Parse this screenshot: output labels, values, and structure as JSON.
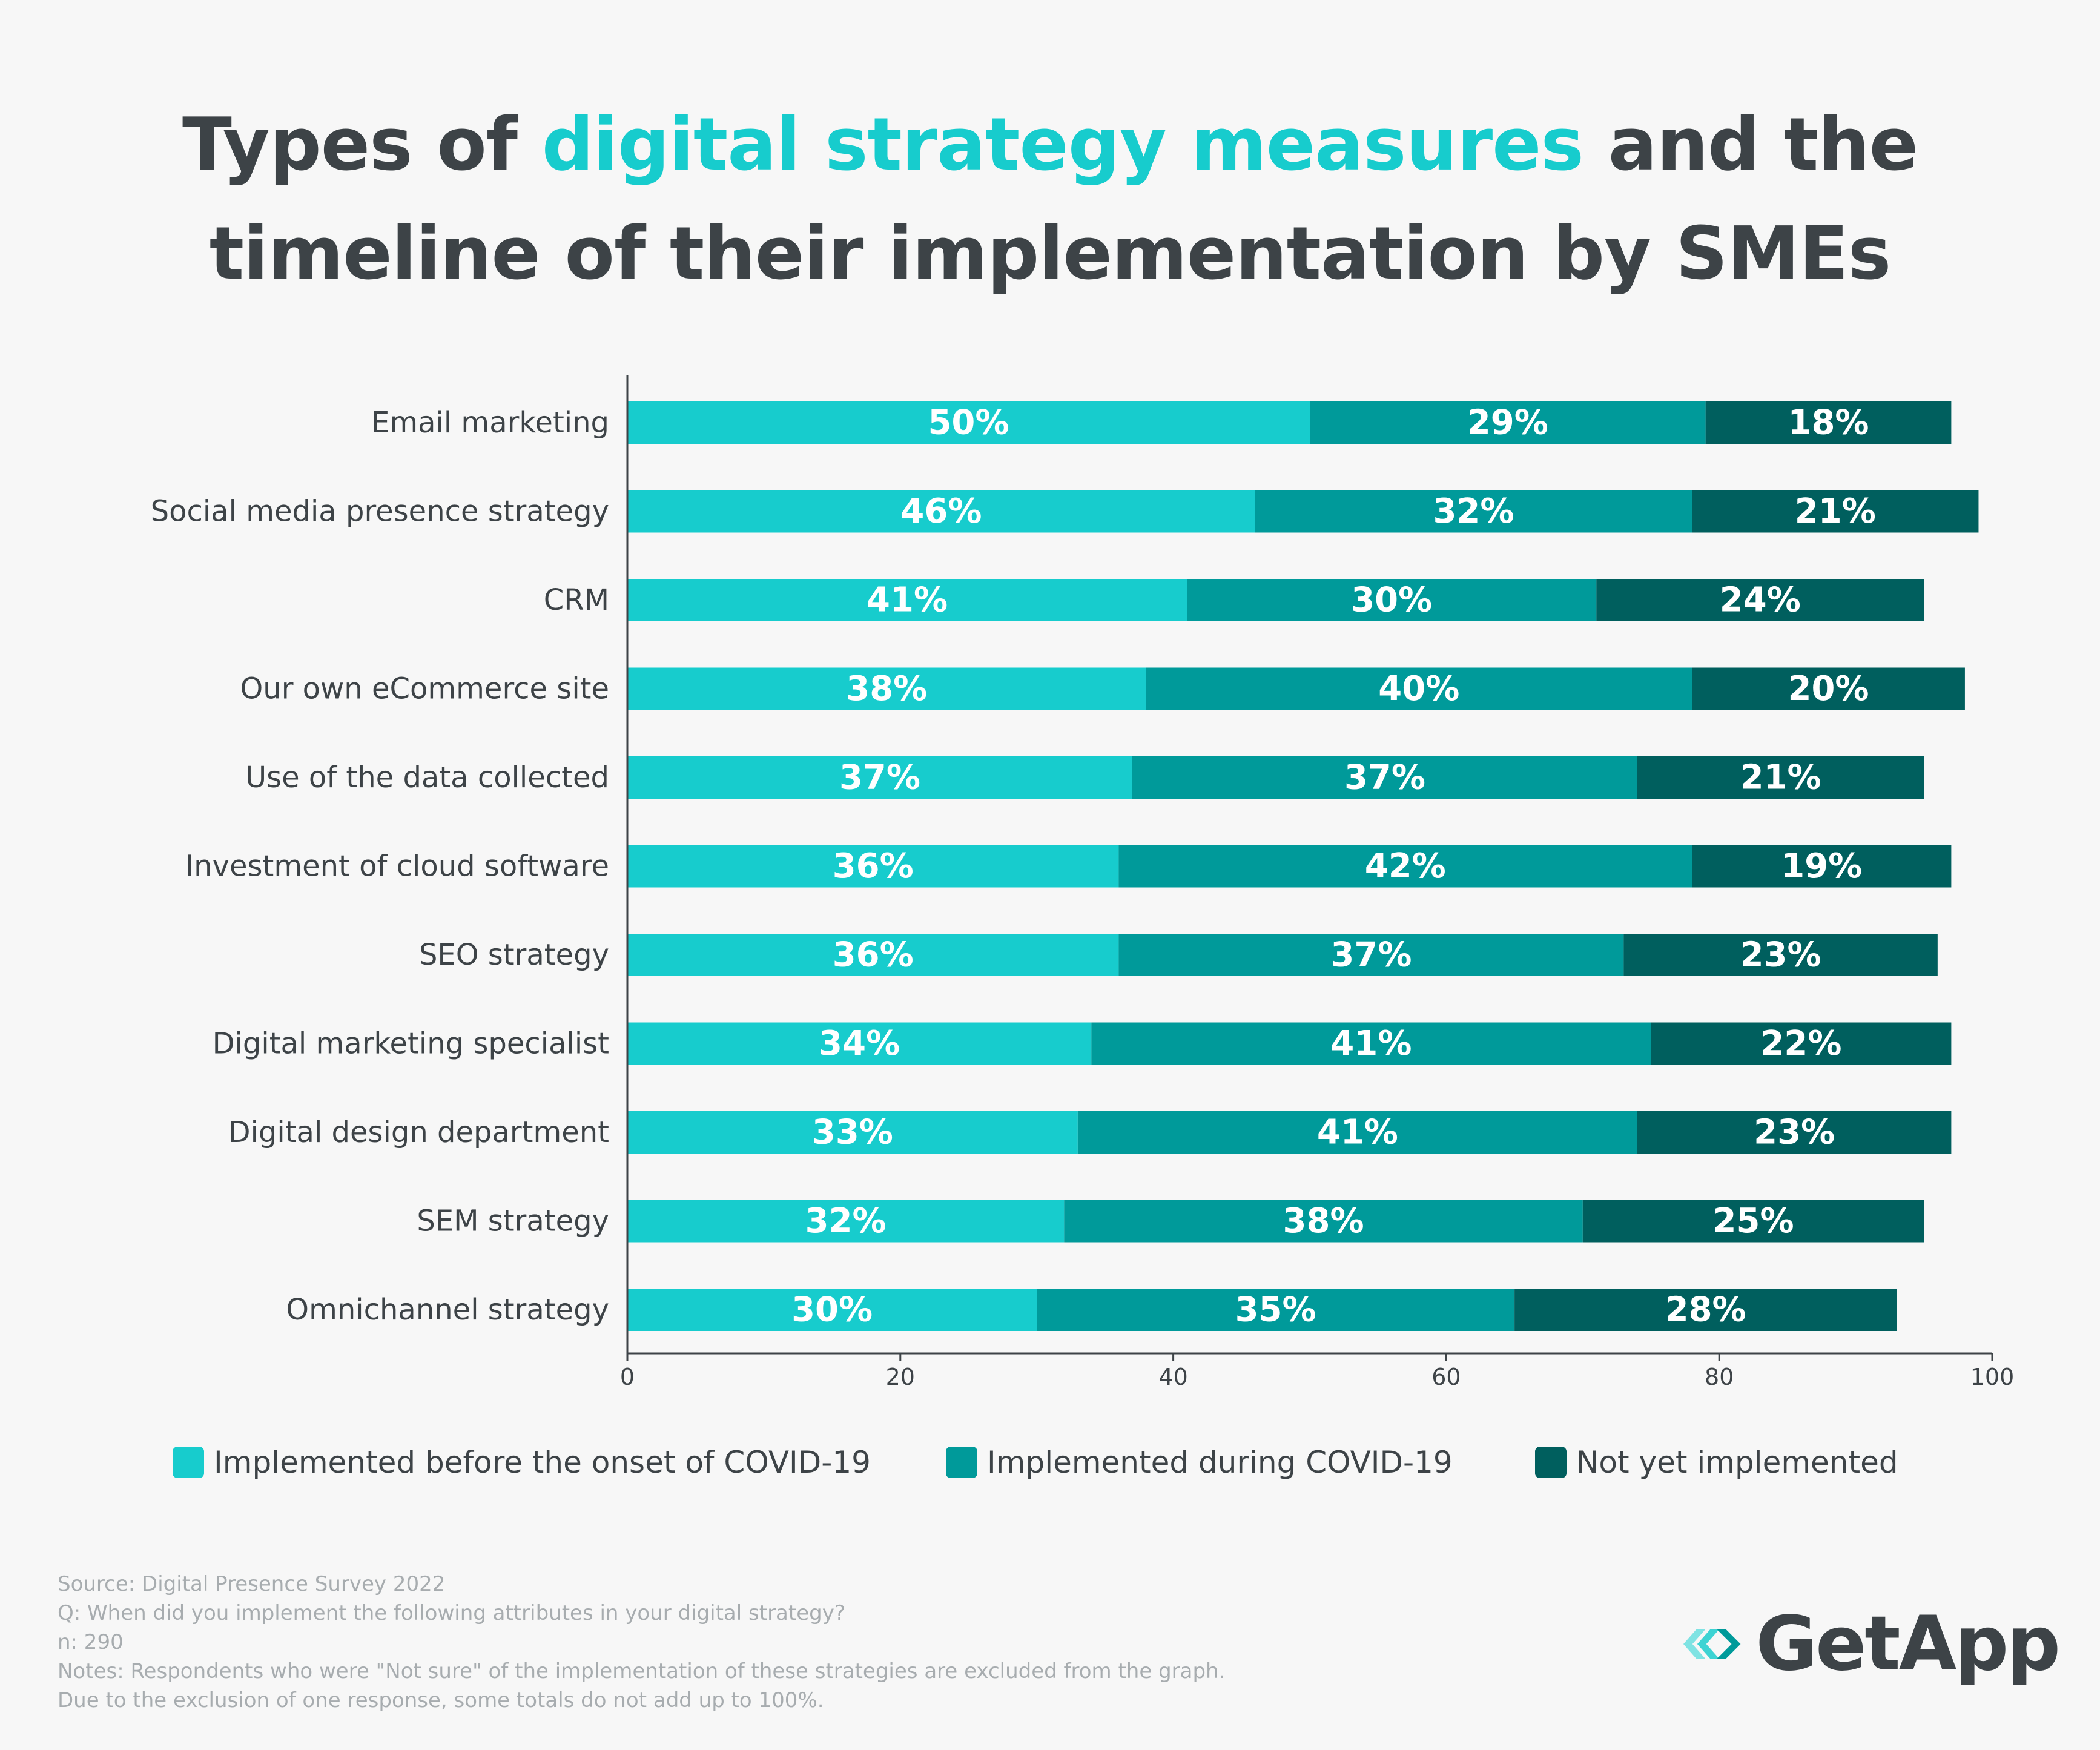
{
  "title": {
    "line1_pre": "Types of ",
    "line1_highlight": "digital strategy measures",
    "line1_post": " and the",
    "line2": "timeline of their implementation by SMEs"
  },
  "colors": {
    "background": "#f7f7f7",
    "text": "#3d4347",
    "accent": "#17cccd",
    "series": [
      "#17cccd",
      "#009a9a",
      "#005f5e"
    ],
    "notes": "#a7acaf"
  },
  "chart_data": {
    "type": "bar",
    "orientation": "horizontal",
    "stacked": true,
    "categories": [
      "Email marketing",
      "Social media presence strategy",
      "CRM",
      "Our own eCommerce site",
      "Use of the data collected",
      "Investment of cloud software",
      "SEO strategy",
      "Digital marketing specialist",
      "Digital design department",
      "SEM strategy",
      "Omnichannel strategy"
    ],
    "series": [
      {
        "name": "Implemented before the onset of COVID-19",
        "values": [
          50,
          46,
          41,
          38,
          37,
          36,
          36,
          34,
          33,
          32,
          30
        ]
      },
      {
        "name": "Implemented during COVID-19",
        "values": [
          29,
          32,
          30,
          40,
          37,
          42,
          37,
          41,
          41,
          38,
          35
        ]
      },
      {
        "name": "Not yet implemented",
        "values": [
          18,
          21,
          24,
          20,
          21,
          19,
          23,
          22,
          23,
          25,
          28
        ]
      }
    ],
    "value_suffix": "%",
    "xlim": [
      0,
      100
    ],
    "xticks": [
      0,
      20,
      40,
      60,
      80,
      100
    ],
    "legend_position": "bottom",
    "grid": false
  },
  "legend": [
    {
      "label": "Implemented before the onset of COVID-19"
    },
    {
      "label": "Implemented during COVID-19"
    },
    {
      "label": "Not yet implemented"
    }
  ],
  "notes": {
    "source": "Source: Digital Presence Survey 2022",
    "question": "Q: When did you implement the following attributes in your digital strategy?",
    "n": "n: 290",
    "notes1": "Notes: Respondents who were \"Not sure\" of the implementation of these strategies are excluded from the graph.",
    "notes2": "Due to the exclusion of one response, some totals do not add up to 100%."
  },
  "logo": {
    "text": "GetApp"
  }
}
